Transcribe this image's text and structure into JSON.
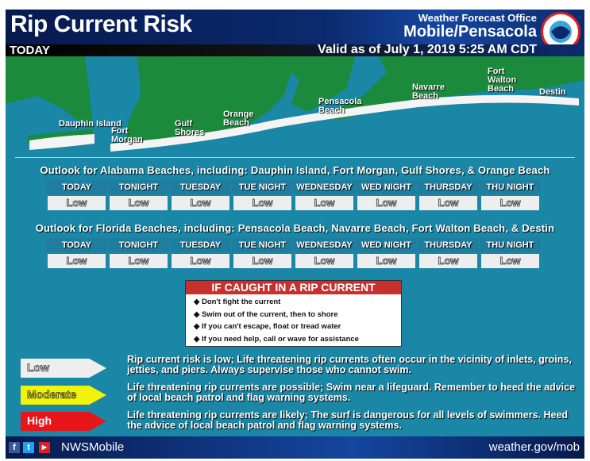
{
  "header": {
    "title": "Rip Current Risk",
    "period": "TODAY",
    "office_label": "Weather Forecast Office",
    "office": "Mobile/Pensacola",
    "valid": "Valid as of July 1, 2019 5:25 AM CDT",
    "logo_text": "NATIONAL WEATHER SERVICE"
  },
  "map": {
    "places": [
      "Dauphin Island",
      "Fort Morgan",
      "Gulf Shores",
      "Orange Beach",
      "Pensacola Beach",
      "Navarre Beach",
      "Fort Walton Beach",
      "Destin"
    ]
  },
  "alabama": {
    "heading": "Outlook for Alabama Beaches, including: Dauphin Island, Fort Morgan, Gulf Shores, & Orange Beach",
    "periods": [
      "TODAY",
      "TONIGHT",
      "TUESDAY",
      "TUE NIGHT",
      "WEDNESDAY",
      "WED NIGHT",
      "THURSDAY",
      "THU NIGHT"
    ],
    "risks": [
      "Low",
      "Low",
      "Low",
      "Low",
      "Low",
      "Low",
      "Low",
      "Low"
    ]
  },
  "florida": {
    "heading": "Outlook for Florida Beaches, including: Pensacola Beach, Navarre Beach, Fort Walton Beach, & Destin",
    "periods": [
      "TODAY",
      "TONIGHT",
      "TUESDAY",
      "TUE NIGHT",
      "WEDNESDAY",
      "WED NIGHT",
      "THURSDAY",
      "THU NIGHT"
    ],
    "risks": [
      "Low",
      "Low",
      "Low",
      "Low",
      "Low",
      "Low",
      "Low",
      "Low"
    ]
  },
  "rip_box": {
    "title": "IF CAUGHT IN A RIP CURRENT",
    "items": [
      "Don't fight the current",
      "Swim out of the current, then to shore",
      "If you can't escape, float or tread water",
      "If you need help, call or wave for assistance"
    ]
  },
  "legend": [
    {
      "label": "Low",
      "color": "#eeeeee",
      "text": "Rip current risk is low; Life threatening rip currents often occur in the vicinity of inlets, groins, jetties, and piers. Always supervise those who cannot swim."
    },
    {
      "label": "Moderate",
      "color": "#f2f20a",
      "text": "Life threatening rip currents are possible; Swim near a lifeguard. Remember to heed the advice of local beach patrol and flag warning systems."
    },
    {
      "label": "High",
      "color": "#e8151b",
      "text": "Life threatening rip currents are likely; The surf is dangerous for all levels of swimmers. Heed the advice of local beach patrol and flag warning systems."
    }
  ],
  "footer": {
    "social": [
      "facebook-icon",
      "twitter-icon",
      "youtube-icon"
    ],
    "handle": "NWSMobile",
    "site": "weather.gov/mob"
  }
}
